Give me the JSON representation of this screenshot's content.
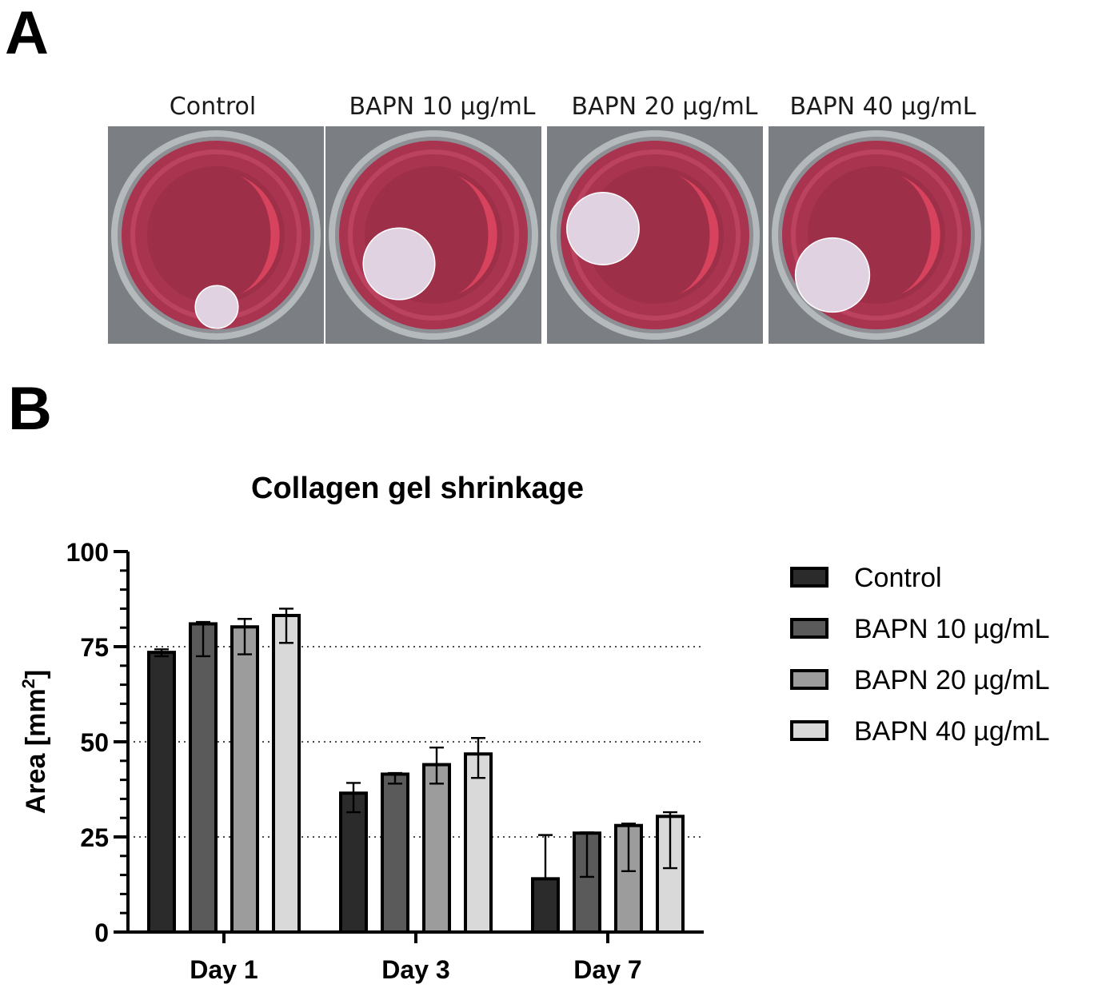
{
  "panel_a": {
    "letter": "A",
    "wells": [
      {
        "label": "Control",
        "gel_diameter_mm": 6.7
      },
      {
        "label": "BAPN 10 µg/mL",
        "gel_diameter_mm": 11.2
      },
      {
        "label": "BAPN 20 µg/mL",
        "gel_diameter_mm": 11.3
      },
      {
        "label": "BAPN 40 µg/mL",
        "gel_diameter_mm": 11.6
      }
    ]
  },
  "panel_b": {
    "letter": "B"
  },
  "colors": {
    "Control": "#2b2b2b",
    "BAPN 10 µg/mL": "#5a5a5a",
    "BAPN 20 µg/mL": "#9c9c9c",
    "BAPN 40 µg/mL": "#d9d9d9",
    "medium": "#a8344f",
    "gel": "#e0d2e0"
  },
  "chart_data": {
    "type": "bar",
    "title": "Collagen gel shrinkage",
    "ylabel_prefix": "Area [mm",
    "ylabel_sup": "2",
    "ylabel_suffix": "]",
    "xlabel": "",
    "categories": [
      "Day 1",
      "Day 3",
      "Day 7"
    ],
    "ylim": [
      0,
      100
    ],
    "yticks": [
      0,
      25,
      50,
      75,
      100
    ],
    "ytick_labels": [
      "0",
      "25",
      "50",
      "75",
      "100"
    ],
    "gridlines": [
      25,
      50,
      75
    ],
    "grid": "dotted horizontal at major ticks",
    "legend_position": "right",
    "series": [
      {
        "name": "Control",
        "values": [
          73.5,
          36.5,
          14
        ],
        "err_low": [
          72.5,
          31.5,
          14
        ],
        "err_high": [
          74.3,
          39.2,
          25.5
        ]
      },
      {
        "name": "BAPN 10 µg/mL",
        "values": [
          81,
          41.5,
          26
        ],
        "err_low": [
          72.5,
          39,
          14.5
        ],
        "err_high": [
          81.5,
          41.8,
          26.2
        ]
      },
      {
        "name": "BAPN 20 µg/mL",
        "values": [
          80.2,
          44,
          28
        ],
        "err_low": [
          73,
          39,
          16
        ],
        "err_high": [
          82.3,
          48.5,
          28.5
        ]
      },
      {
        "name": "BAPN 40 µg/mL",
        "values": [
          83.2,
          46.8,
          30.4
        ],
        "err_low": [
          76,
          40.5,
          16.8
        ],
        "err_high": [
          85,
          51,
          31.5
        ]
      }
    ]
  }
}
